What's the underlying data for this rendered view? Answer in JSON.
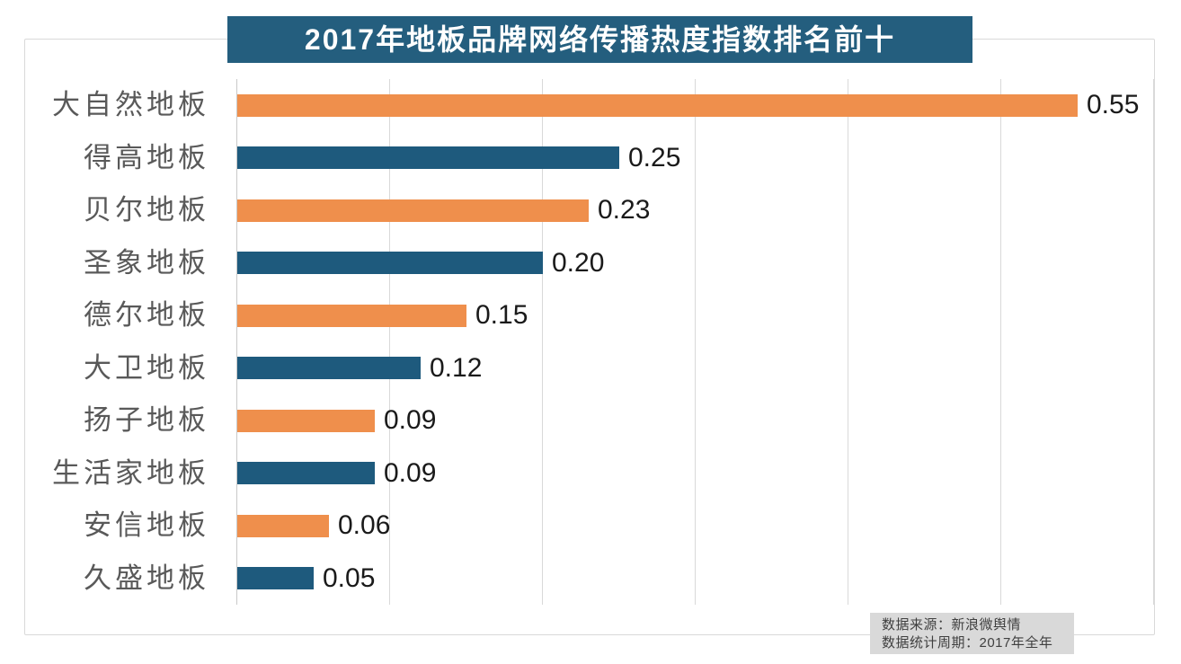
{
  "title": "2017年地板品牌网络传播热度指数排名前十",
  "source_note": {
    "line1": "数据来源：新浪微舆情",
    "line2": "数据统计周期：2017年全年"
  },
  "colors": {
    "orange": "#ef8f4c",
    "blue": "#1e5a7d",
    "title_bg": "#245e7e",
    "title_text": "#ffffff",
    "gridline": "#d9d9d9",
    "axis_line": "#c9c9c9",
    "category_label": "#595959",
    "value_label": "#1a1a1a",
    "source_bg": "#d9d9d9",
    "source_text": "#3f3f3f"
  },
  "chart_data": {
    "type": "bar",
    "orientation": "horizontal",
    "title": "2017年地板品牌网络传播热度指数排名前十",
    "categories": [
      "大自然地板",
      "得高地板",
      "贝尔地板",
      "圣象地板",
      "德尔地板",
      "大卫地板",
      "扬子地板",
      "生活家地板",
      "安信地板",
      "久盛地板"
    ],
    "values": [
      0.55,
      0.25,
      0.23,
      0.2,
      0.15,
      0.12,
      0.09,
      0.09,
      0.06,
      0.05
    ],
    "value_labels": [
      "0.55",
      "0.25",
      "0.23",
      "0.20",
      "0.15",
      "0.12",
      "0.09",
      "0.09",
      "0.06",
      "0.05"
    ],
    "bar_color_sequence": [
      "orange",
      "blue"
    ],
    "xlabel": "",
    "ylabel": "",
    "xlim": [
      0,
      0.6
    ],
    "gridline_interval": 0.1,
    "grid": true,
    "legend": false,
    "value_labels_position": "end-of-bar"
  }
}
